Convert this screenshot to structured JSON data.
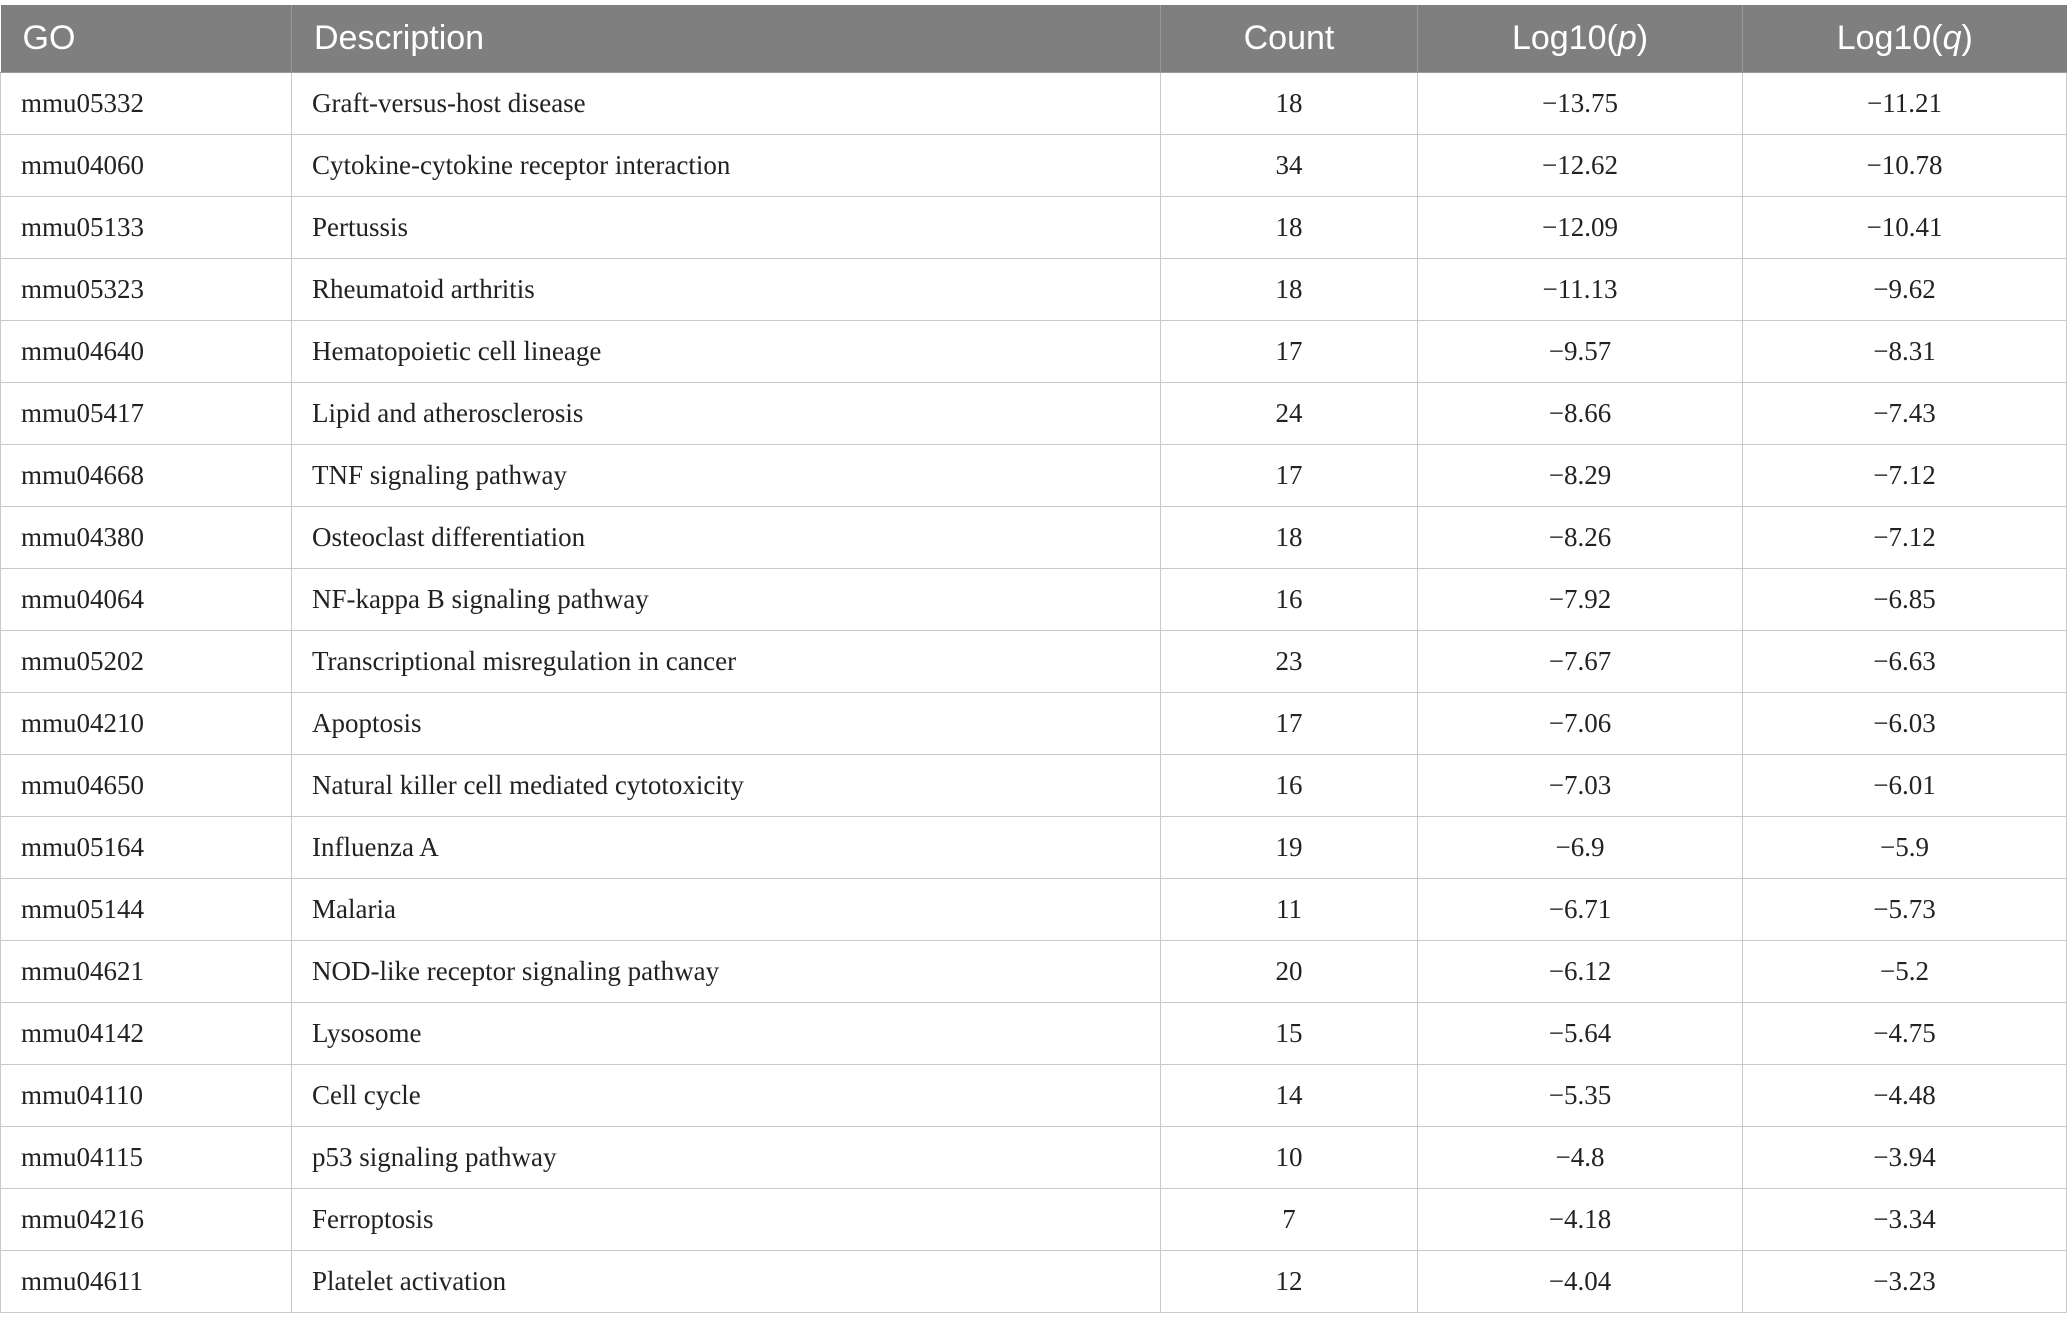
{
  "table": {
    "headers": {
      "go": "GO",
      "description": "Description",
      "count": "Count",
      "log_p_prefix": "Log10(",
      "log_p_var": "p",
      "log_p_suffix": ")",
      "log_q_prefix": "Log10(",
      "log_q_var": "q",
      "log_q_suffix": ")"
    },
    "rows": [
      {
        "go": "mmu05332",
        "description": "Graft-versus-host disease",
        "count": "18",
        "log_p": "−13.75",
        "log_q": "−11.21"
      },
      {
        "go": "mmu04060",
        "description": "Cytokine-cytokine receptor interaction",
        "count": "34",
        "log_p": "−12.62",
        "log_q": "−10.78"
      },
      {
        "go": "mmu05133",
        "description": "Pertussis",
        "count": "18",
        "log_p": "−12.09",
        "log_q": "−10.41"
      },
      {
        "go": "mmu05323",
        "description": "Rheumatoid arthritis",
        "count": "18",
        "log_p": "−11.13",
        "log_q": "−9.62"
      },
      {
        "go": "mmu04640",
        "description": "Hematopoietic cell lineage",
        "count": "17",
        "log_p": "−9.57",
        "log_q": "−8.31"
      },
      {
        "go": "mmu05417",
        "description": "Lipid and atherosclerosis",
        "count": "24",
        "log_p": "−8.66",
        "log_q": "−7.43"
      },
      {
        "go": "mmu04668",
        "description": "TNF signaling pathway",
        "count": "17",
        "log_p": "−8.29",
        "log_q": "−7.12"
      },
      {
        "go": "mmu04380",
        "description": "Osteoclast differentiation",
        "count": "18",
        "log_p": "−8.26",
        "log_q": "−7.12"
      },
      {
        "go": "mmu04064",
        "description": "NF-kappa B signaling pathway",
        "count": "16",
        "log_p": "−7.92",
        "log_q": "−6.85"
      },
      {
        "go": "mmu05202",
        "description": "Transcriptional misregulation in cancer",
        "count": "23",
        "log_p": "−7.67",
        "log_q": "−6.63"
      },
      {
        "go": "mmu04210",
        "description": "Apoptosis",
        "count": "17",
        "log_p": "−7.06",
        "log_q": "−6.03"
      },
      {
        "go": "mmu04650",
        "description": "Natural killer cell mediated cytotoxicity",
        "count": "16",
        "log_p": "−7.03",
        "log_q": "−6.01"
      },
      {
        "go": "mmu05164",
        "description": "Influenza A",
        "count": "19",
        "log_p": "−6.9",
        "log_q": "−5.9"
      },
      {
        "go": "mmu05144",
        "description": "Malaria",
        "count": "11",
        "log_p": "−6.71",
        "log_q": "−5.73"
      },
      {
        "go": "mmu04621",
        "description": "NOD-like receptor signaling pathway",
        "count": "20",
        "log_p": "−6.12",
        "log_q": "−5.2"
      },
      {
        "go": "mmu04142",
        "description": "Lysosome",
        "count": "15",
        "log_p": "−5.64",
        "log_q": "−4.75"
      },
      {
        "go": "mmu04110",
        "description": "Cell cycle",
        "count": "14",
        "log_p": "−5.35",
        "log_q": "−4.48"
      },
      {
        "go": "mmu04115",
        "description": "p53 signaling pathway",
        "count": "10",
        "log_p": "−4.8",
        "log_q": "−3.94"
      },
      {
        "go": "mmu04216",
        "description": "Ferroptosis",
        "count": "7",
        "log_p": "−4.18",
        "log_q": "−3.34"
      },
      {
        "go": "mmu04611",
        "description": "Platelet activation",
        "count": "12",
        "log_p": "−4.04",
        "log_q": "−3.23"
      }
    ]
  }
}
